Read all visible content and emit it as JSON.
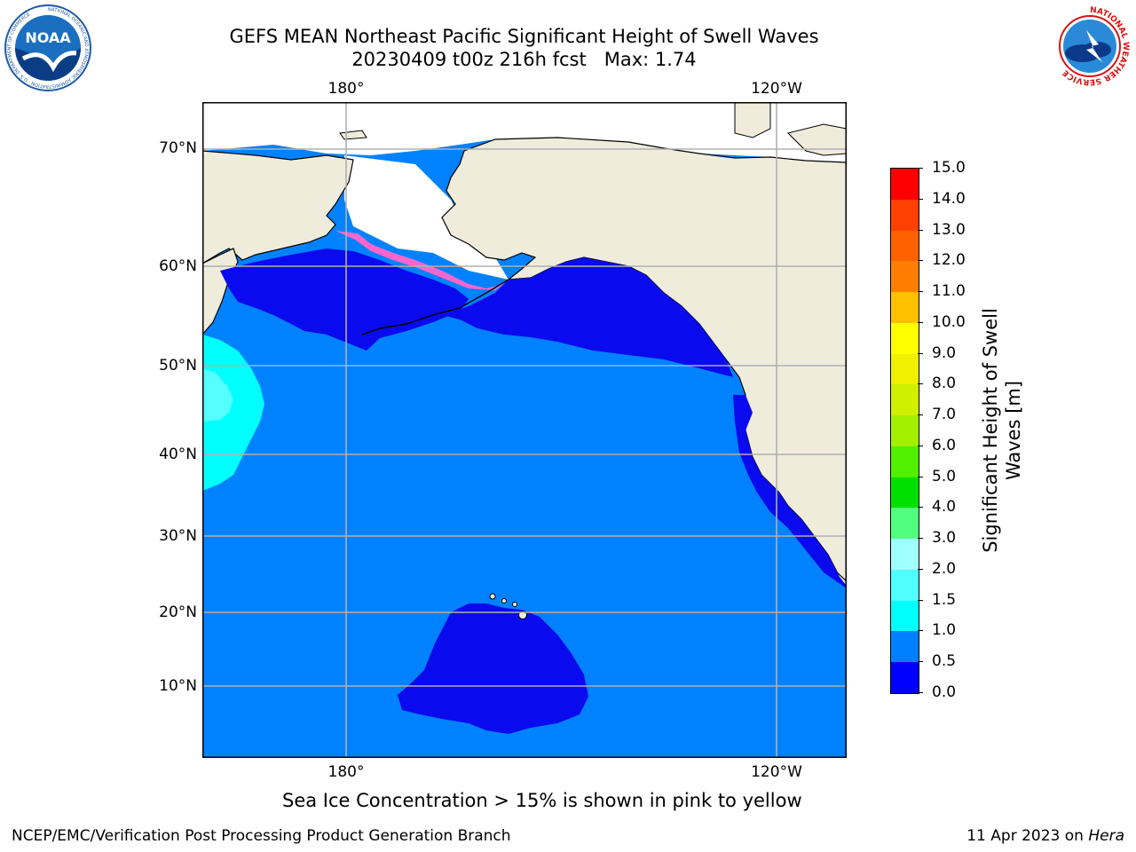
{
  "title_line1": "GEFS MEAN Northeast Pacific Significant Height of Swell Waves",
  "title_line2": "20230409 t00z 216h fcst   Max: 1.74",
  "logos": {
    "left": {
      "text": "NOAA",
      "ring_text": "NATIONAL OCEANIC AND ATMOSPHERIC ADMINISTRATION · U.S. DEPARTMENT OF COMMERCE"
    },
    "right": {
      "ring_text": "NATIONAL WEATHER SERVICE"
    }
  },
  "map": {
    "lon_labels_top": [
      "180°",
      "120°W"
    ],
    "lon_labels_bottom": [
      "180°",
      "120°W"
    ],
    "lat_labels": [
      "70°N",
      "60°N",
      "50°N",
      "40°N",
      "30°N",
      "20°N",
      "10°N"
    ],
    "colors": {
      "land": "#efecdc",
      "ocean_main": "#0082ff",
      "ocean_low": "#0a0aee",
      "ocean_mid": "#00ffff",
      "ocean_high": "#55ffff",
      "ice": "#ff66cc",
      "grid": "#b0b0b0"
    }
  },
  "colorbar": {
    "title_line1": "Significant Height of Swell",
    "title_line2": "Waves [m]",
    "tick_labels": [
      "0.0",
      "0.5",
      "1.0",
      "1.5",
      "2.0",
      "3.0",
      "4.0",
      "5.0",
      "6.0",
      "7.0",
      "8.0",
      "9.0",
      "10.0",
      "11.0",
      "12.0",
      "13.0",
      "14.0",
      "15.0"
    ],
    "colors": [
      "#0000ff",
      "#0080ff",
      "#00ffff",
      "#50ffff",
      "#a0ffff",
      "#50ff80",
      "#00e000",
      "#50f000",
      "#a0f000",
      "#d0f000",
      "#f0f000",
      "#ffff00",
      "#ffc000",
      "#ff8000",
      "#ff6000",
      "#ff4000",
      "#ff0000"
    ]
  },
  "caption": "Sea Ice Concentration > 15% is shown in pink to yellow",
  "footer_left": "NCEP/EMC/Verification Post Processing Product Generation Branch",
  "footer_right_prefix": "11 Apr 2023 on ",
  "footer_right_italic": "Hera"
}
